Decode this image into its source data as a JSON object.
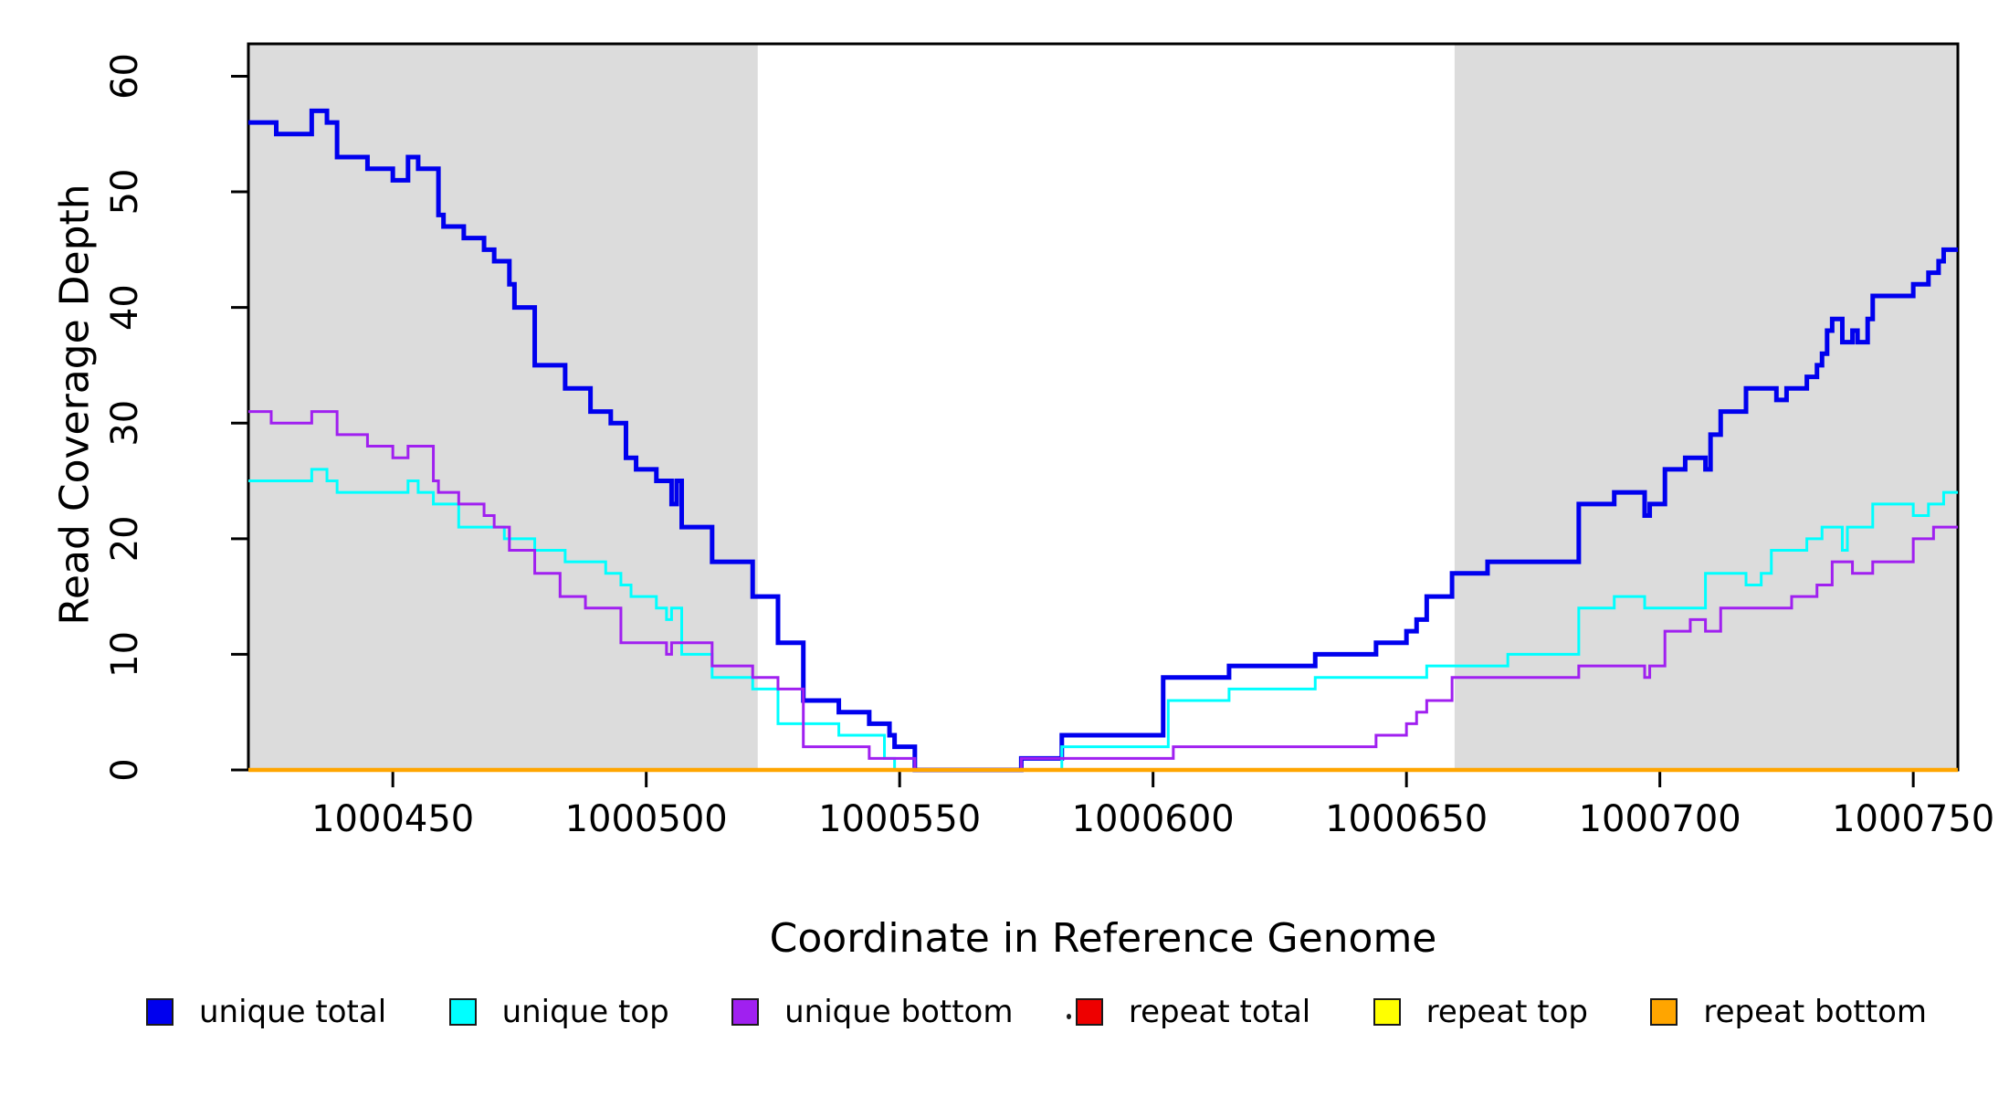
{
  "chart_data": {
    "type": "line",
    "step": true,
    "title": "",
    "xlabel": "Coordinate in Reference Genome",
    "ylabel": "Read Coverage Depth",
    "xlim": [
      1000421.5,
      1000758.8
    ],
    "ylim": [
      0,
      62.8
    ],
    "grid": false,
    "x_ticks": [
      {
        "value": 1000450,
        "label": "1000450"
      },
      {
        "value": 1000500,
        "label": "1000500"
      },
      {
        "value": 1000550,
        "label": "1000550"
      },
      {
        "value": 1000600,
        "label": "1000600"
      },
      {
        "value": 1000650,
        "label": "1000650"
      },
      {
        "value": 1000700,
        "label": "1000700"
      },
      {
        "value": 1000750,
        "label": "1000750"
      }
    ],
    "y_ticks": [
      {
        "value": 0,
        "label": "0"
      },
      {
        "value": 10,
        "label": "10"
      },
      {
        "value": 20,
        "label": "20"
      },
      {
        "value": 30,
        "label": "30"
      },
      {
        "value": 40,
        "label": "40"
      },
      {
        "value": 50,
        "label": "50"
      },
      {
        "value": 60,
        "label": "60"
      }
    ],
    "shaded_regions": [
      {
        "from": 1000421.5,
        "to": 1000522,
        "color": "#DCDCDC"
      },
      {
        "from": 1000659.5,
        "to": 1000758.8,
        "color": "#DCDCDC"
      }
    ],
    "series": [
      {
        "name": "unique total",
        "color": "#0000EE",
        "width": 5,
        "points": [
          [
            1000421.5,
            56
          ],
          [
            1000427,
            55
          ],
          [
            1000434,
            57
          ],
          [
            1000437,
            56
          ],
          [
            1000439,
            53
          ],
          [
            1000445,
            52
          ],
          [
            1000450,
            51
          ],
          [
            1000453,
            53
          ],
          [
            1000455,
            52
          ],
          [
            1000459,
            48
          ],
          [
            1000460,
            47
          ],
          [
            1000464,
            46
          ],
          [
            1000468,
            45
          ],
          [
            1000470,
            44
          ],
          [
            1000473,
            42
          ],
          [
            1000474,
            40
          ],
          [
            1000478,
            35
          ],
          [
            1000484,
            33
          ],
          [
            1000489,
            31
          ],
          [
            1000493,
            30
          ],
          [
            1000496,
            27
          ],
          [
            1000498,
            26
          ],
          [
            1000502,
            25
          ],
          [
            1000505,
            23
          ],
          [
            1000506,
            25
          ],
          [
            1000507,
            21
          ],
          [
            1000513,
            18
          ],
          [
            1000521,
            15
          ],
          [
            1000526,
            11
          ],
          [
            1000531,
            6
          ],
          [
            1000538,
            5
          ],
          [
            1000544,
            4
          ],
          [
            1000548,
            3
          ],
          [
            1000549,
            2
          ],
          [
            1000553,
            0
          ],
          [
            1000574,
            1
          ],
          [
            1000582,
            3
          ],
          [
            1000602,
            8
          ],
          [
            1000615,
            9
          ],
          [
            1000632,
            10
          ],
          [
            1000644,
            11
          ],
          [
            1000650,
            12
          ],
          [
            1000652,
            13
          ],
          [
            1000654,
            15
          ],
          [
            1000659,
            17
          ],
          [
            1000666,
            18
          ],
          [
            1000684,
            23
          ],
          [
            1000691,
            24
          ],
          [
            1000697,
            22
          ],
          [
            1000698,
            23
          ],
          [
            1000701,
            26
          ],
          [
            1000705,
            27
          ],
          [
            1000709,
            26
          ],
          [
            1000710,
            29
          ],
          [
            1000712,
            31
          ],
          [
            1000717,
            33
          ],
          [
            1000723,
            32
          ],
          [
            1000725,
            33
          ],
          [
            1000729,
            34
          ],
          [
            1000731,
            35
          ],
          [
            1000732,
            36
          ],
          [
            1000733,
            38
          ],
          [
            1000734,
            39
          ],
          [
            1000736,
            37
          ],
          [
            1000738,
            38
          ],
          [
            1000739,
            37
          ],
          [
            1000741,
            39
          ],
          [
            1000742,
            41
          ],
          [
            1000750,
            42
          ],
          [
            1000753,
            43
          ],
          [
            1000755,
            44
          ],
          [
            1000756,
            45
          ]
        ]
      },
      {
        "name": "unique top",
        "color": "#00FFFF",
        "width": 3,
        "points": [
          [
            1000421.5,
            25
          ],
          [
            1000434,
            26
          ],
          [
            1000437,
            25
          ],
          [
            1000439,
            24
          ],
          [
            1000453,
            25
          ],
          [
            1000455,
            24
          ],
          [
            1000458,
            23
          ],
          [
            1000463,
            21
          ],
          [
            1000472,
            20
          ],
          [
            1000478,
            19
          ],
          [
            1000484,
            18
          ],
          [
            1000492,
            17
          ],
          [
            1000495,
            16
          ],
          [
            1000497,
            15
          ],
          [
            1000502,
            14
          ],
          [
            1000504,
            13
          ],
          [
            1000505,
            14
          ],
          [
            1000507,
            10
          ],
          [
            1000513,
            8
          ],
          [
            1000521,
            7
          ],
          [
            1000526,
            4
          ],
          [
            1000538,
            3
          ],
          [
            1000547,
            1
          ],
          [
            1000549,
            0
          ],
          [
            1000582,
            2
          ],
          [
            1000603,
            6
          ],
          [
            1000615,
            7
          ],
          [
            1000632,
            8
          ],
          [
            1000654,
            9
          ],
          [
            1000670,
            10
          ],
          [
            1000684,
            14
          ],
          [
            1000691,
            15
          ],
          [
            1000697,
            14
          ],
          [
            1000709,
            17
          ],
          [
            1000717,
            16
          ],
          [
            1000720,
            17
          ],
          [
            1000722,
            19
          ],
          [
            1000729,
            20
          ],
          [
            1000732,
            21
          ],
          [
            1000736,
            19
          ],
          [
            1000737,
            21
          ],
          [
            1000742,
            23
          ],
          [
            1000750,
            22
          ],
          [
            1000753,
            23
          ],
          [
            1000756,
            24
          ]
        ]
      },
      {
        "name": "unique bottom",
        "color": "#A020F0",
        "width": 3,
        "points": [
          [
            1000421.5,
            31
          ],
          [
            1000426,
            30
          ],
          [
            1000434,
            31
          ],
          [
            1000439,
            29
          ],
          [
            1000445,
            28
          ],
          [
            1000450,
            27
          ],
          [
            1000453,
            28
          ],
          [
            1000458,
            25
          ],
          [
            1000459,
            24
          ],
          [
            1000463,
            23
          ],
          [
            1000468,
            22
          ],
          [
            1000470,
            21
          ],
          [
            1000473,
            19
          ],
          [
            1000478,
            17
          ],
          [
            1000483,
            15
          ],
          [
            1000488,
            14
          ],
          [
            1000495,
            11
          ],
          [
            1000504,
            10
          ],
          [
            1000505,
            11
          ],
          [
            1000513,
            9
          ],
          [
            1000521,
            8
          ],
          [
            1000526,
            7
          ],
          [
            1000531,
            2
          ],
          [
            1000544,
            1
          ],
          [
            1000553,
            0
          ],
          [
            1000574,
            1
          ],
          [
            1000604,
            2
          ],
          [
            1000644,
            3
          ],
          [
            1000650,
            4
          ],
          [
            1000652,
            5
          ],
          [
            1000654,
            6
          ],
          [
            1000659,
            8
          ],
          [
            1000684,
            9
          ],
          [
            1000697,
            8
          ],
          [
            1000698,
            9
          ],
          [
            1000701,
            12
          ],
          [
            1000706,
            13
          ],
          [
            1000709,
            12
          ],
          [
            1000712,
            14
          ],
          [
            1000726,
            15
          ],
          [
            1000731,
            16
          ],
          [
            1000734,
            18
          ],
          [
            1000738,
            17
          ],
          [
            1000742,
            18
          ],
          [
            1000750,
            20
          ],
          [
            1000754,
            21
          ]
        ]
      },
      {
        "name": "repeat total",
        "color": "#EE0000",
        "width": 3,
        "points": [
          [
            1000421.5,
            0
          ]
        ]
      },
      {
        "name": "repeat top",
        "color": "#FFFF00",
        "width": 3,
        "points": [
          [
            1000421.5,
            0
          ]
        ]
      },
      {
        "name": "repeat bottom",
        "color": "#FFA500",
        "width": 4.5,
        "points": [
          [
            1000421.5,
            0
          ]
        ]
      }
    ]
  },
  "legend": {
    "items": [
      {
        "label": "unique total",
        "color": "#0000EE"
      },
      {
        "label": "unique top",
        "color": "#00FFFF"
      },
      {
        "label": "unique bottom",
        "color": "#A020F0"
      },
      {
        "label": "repeat total",
        "color": "#EE0000"
      },
      {
        "label": "repeat top",
        "color": "#FFFF00"
      },
      {
        "label": "repeat bottom",
        "color": "#FFA500"
      }
    ]
  },
  "labels": {
    "x_axis": "Coordinate in Reference Genome",
    "y_axis": "Read Coverage Depth"
  }
}
